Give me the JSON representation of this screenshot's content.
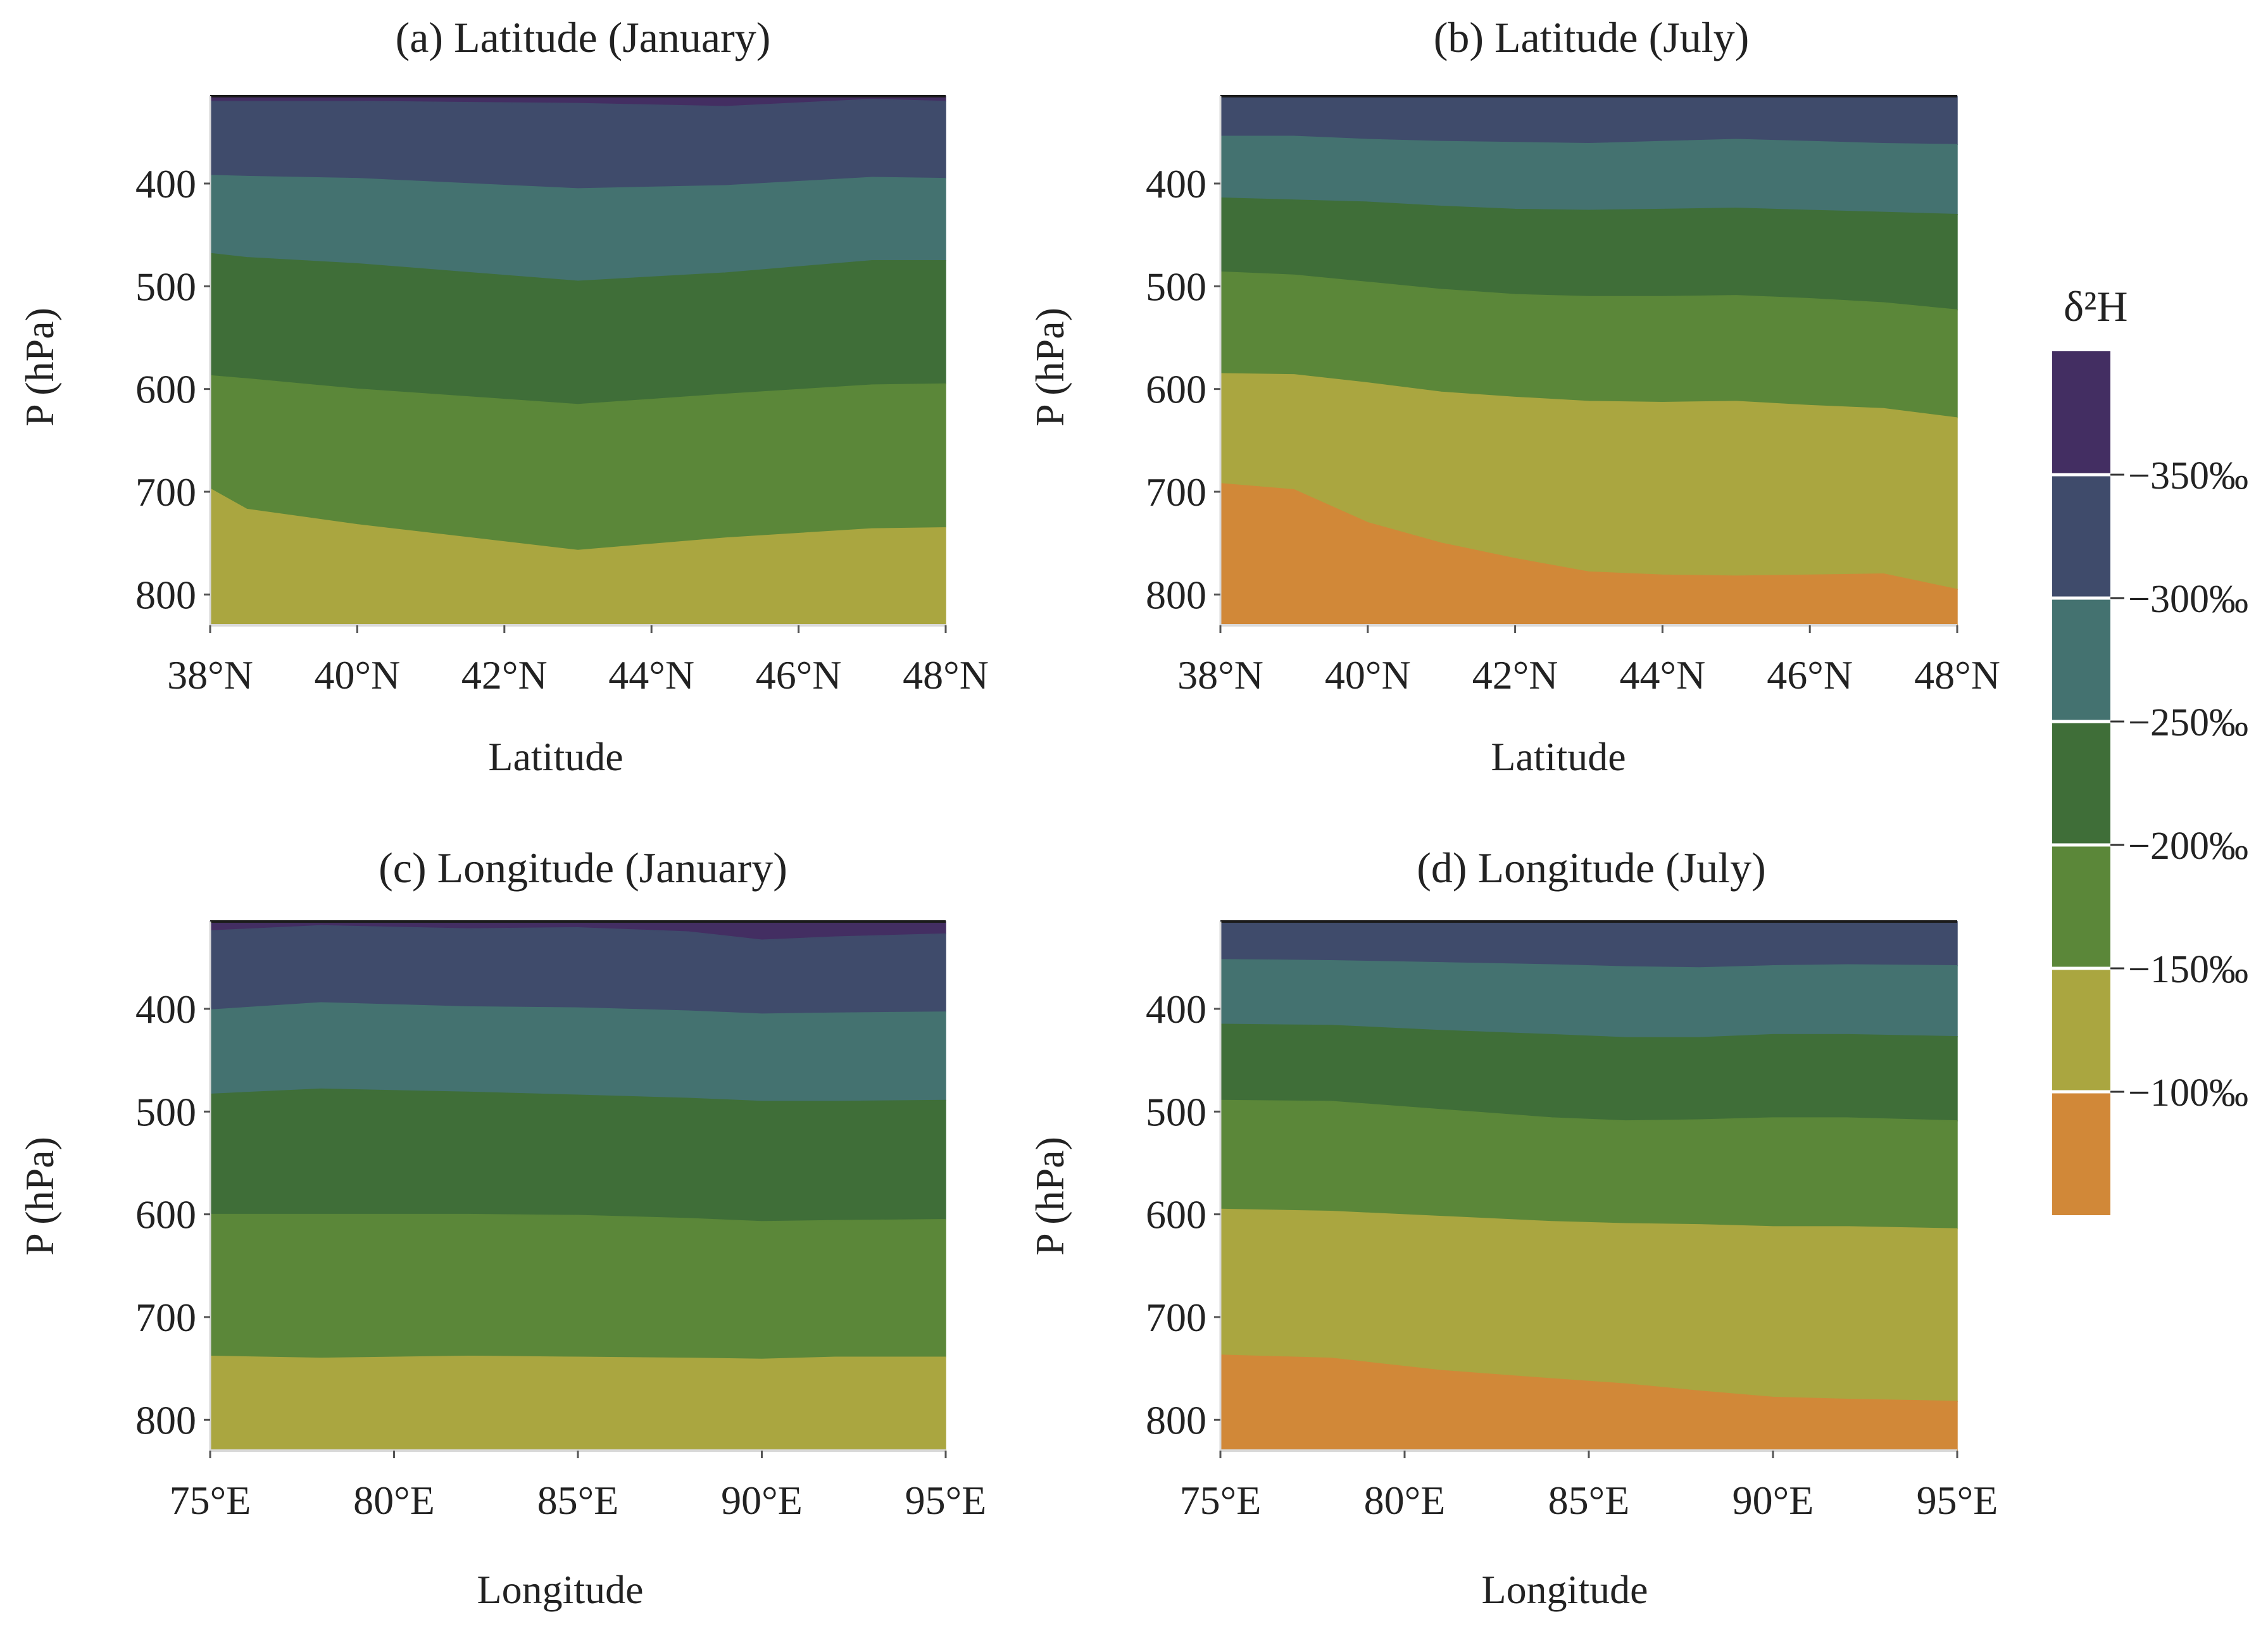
{
  "figure": {
    "colorbar": {
      "title": "δ²H",
      "bands": [
        {
          "color": "#432e62"
        },
        {
          "color": "#3f4b6b"
        },
        {
          "color": "#447270"
        },
        {
          "color": "#3f6e38"
        },
        {
          "color": "#5b8739"
        },
        {
          "color": "#aaa640"
        },
        {
          "color": "#d18838"
        }
      ],
      "boundary_labels": [
        "−350‰",
        "−300‰",
        "−250‰",
        "−200‰",
        "−150‰",
        "−100‰"
      ],
      "boundary_values": [
        -350,
        -300,
        -250,
        -200,
        -150,
        -100
      ]
    }
  },
  "chart_data": [
    {
      "type": "area",
      "title": "(a) Latitude (January)",
      "xlabel": "Latitude",
      "ylabel": "P (hPa)",
      "xlim": [
        38,
        48
      ],
      "ylim": [
        830,
        315
      ],
      "y_inverted": true,
      "xticks": [
        38,
        40,
        42,
        44,
        46,
        48
      ],
      "xtick_labels": [
        "38°N",
        "40°N",
        "42°N",
        "44°N",
        "46°N",
        "48°N"
      ],
      "yticks": [
        400,
        500,
        600,
        700,
        800
      ],
      "ytick_labels": [
        "400",
        "500",
        "600",
        "700",
        "800"
      ],
      "x": [
        38,
        38.5,
        40,
        43,
        45,
        47,
        48
      ],
      "band_colors": [
        "#432e62",
        "#3f4b6b",
        "#447270",
        "#3f6e38",
        "#5b8739",
        "#aaa640"
      ],
      "boundaries_hPa": [
        {
          "values": [
            320,
            320,
            320,
            322,
            325,
            318,
            320
          ]
        },
        {
          "values": [
            392,
            393,
            395,
            405,
            402,
            394,
            395
          ]
        },
        {
          "values": [
            468,
            472,
            478,
            495,
            487,
            475,
            475
          ]
        },
        {
          "values": [
            587,
            590,
            600,
            615,
            605,
            596,
            595
          ]
        },
        {
          "values": [
            697,
            717,
            732,
            757,
            745,
            736,
            735
          ]
        }
      ]
    },
    {
      "type": "area",
      "title": "(b) Latitude (July)",
      "xlabel": "Latitude",
      "ylabel": "P (hPa)",
      "xlim": [
        38,
        48
      ],
      "ylim": [
        830,
        315
      ],
      "y_inverted": true,
      "xticks": [
        38,
        40,
        42,
        44,
        46,
        48
      ],
      "xtick_labels": [
        "38°N",
        "40°N",
        "42°N",
        "44°N",
        "46°N",
        "48°N"
      ],
      "yticks": [
        400,
        500,
        600,
        700,
        800
      ],
      "ytick_labels": [
        "400",
        "500",
        "600",
        "700",
        "800"
      ],
      "x": [
        38,
        39,
        40,
        41,
        42,
        43,
        44,
        45,
        46,
        47,
        48
      ],
      "band_colors": [
        "#3f4b6b",
        "#447270",
        "#3f6e38",
        "#5b8739",
        "#aaa640",
        "#d18838"
      ],
      "boundaries_hPa": [
        {
          "values": [
            354,
            354,
            357,
            359,
            360,
            361,
            359,
            357,
            359,
            361,
            362
          ]
        },
        {
          "values": [
            414,
            416,
            418,
            422,
            425,
            426,
            425,
            424,
            426,
            428,
            430
          ]
        },
        {
          "values": [
            486,
            489,
            496,
            503,
            508,
            510,
            510,
            509,
            512,
            516,
            523
          ]
        },
        {
          "values": [
            585,
            586,
            594,
            603,
            608,
            612,
            613,
            612,
            616,
            619,
            628
          ]
        },
        {
          "values": [
            692,
            698,
            730,
            750,
            765,
            778,
            781,
            782,
            781,
            780,
            795
          ]
        }
      ]
    },
    {
      "type": "area",
      "title": "(c) Longitude (January)",
      "xlabel": "Longitude",
      "ylabel": "P (hPa)",
      "xlim": [
        75,
        95
      ],
      "ylim": [
        830,
        315
      ],
      "y_inverted": true,
      "xticks": [
        75,
        80,
        85,
        90,
        95
      ],
      "xtick_labels": [
        "75°E",
        "80°E",
        "85°E",
        "90°E",
        "95°E"
      ],
      "yticks": [
        400,
        500,
        600,
        700,
        800
      ],
      "ytick_labels": [
        "400",
        "500",
        "600",
        "700",
        "800"
      ],
      "x": [
        75,
        78,
        82,
        85,
        88,
        90,
        92,
        95
      ],
      "band_colors": [
        "#432e62",
        "#3f4b6b",
        "#447270",
        "#3f6e38",
        "#5b8739",
        "#aaa640"
      ],
      "boundaries_hPa": [
        {
          "values": [
            324,
            319,
            322,
            321,
            325,
            333,
            330,
            327
          ]
        },
        {
          "values": [
            401,
            394,
            398,
            399,
            402,
            405,
            404,
            403
          ]
        },
        {
          "values": [
            483,
            478,
            481,
            484,
            487,
            490,
            490,
            489
          ]
        },
        {
          "values": [
            600,
            600,
            600,
            601,
            604,
            607,
            606,
            605
          ]
        },
        {
          "values": [
            738,
            740,
            738,
            739,
            740,
            741,
            739,
            739
          ]
        }
      ]
    },
    {
      "type": "area",
      "title": "(d) Longitude (July)",
      "xlabel": "Longitude",
      "ylabel": "P (hPa)",
      "xlim": [
        75,
        95
      ],
      "ylim": [
        830,
        315
      ],
      "y_inverted": true,
      "xticks": [
        75,
        80,
        85,
        90,
        95
      ],
      "xtick_labels": [
        "75°E",
        "80°E",
        "85°E",
        "90°E",
        "95°E"
      ],
      "yticks": [
        400,
        500,
        600,
        700,
        800
      ],
      "ytick_labels": [
        "400",
        "500",
        "600",
        "700",
        "800"
      ],
      "x": [
        75,
        78,
        81,
        84,
        86,
        88,
        90,
        92,
        95
      ],
      "band_colors": [
        "#3f4b6b",
        "#447270",
        "#3f6e38",
        "#5b8739",
        "#aaa640",
        "#d18838"
      ],
      "boundaries_hPa": [
        {
          "values": [
            352,
            353,
            355,
            357,
            359,
            360,
            358,
            357,
            358
          ]
        },
        {
          "values": [
            415,
            416,
            421,
            425,
            428,
            428,
            425,
            425,
            427
          ]
        },
        {
          "values": [
            489,
            490,
            498,
            506,
            509,
            508,
            506,
            506,
            509
          ]
        },
        {
          "values": [
            595,
            597,
            602,
            607,
            609,
            610,
            612,
            612,
            614
          ]
        },
        {
          "values": [
            737,
            740,
            752,
            760,
            765,
            772,
            778,
            780,
            782
          ]
        }
      ]
    }
  ]
}
